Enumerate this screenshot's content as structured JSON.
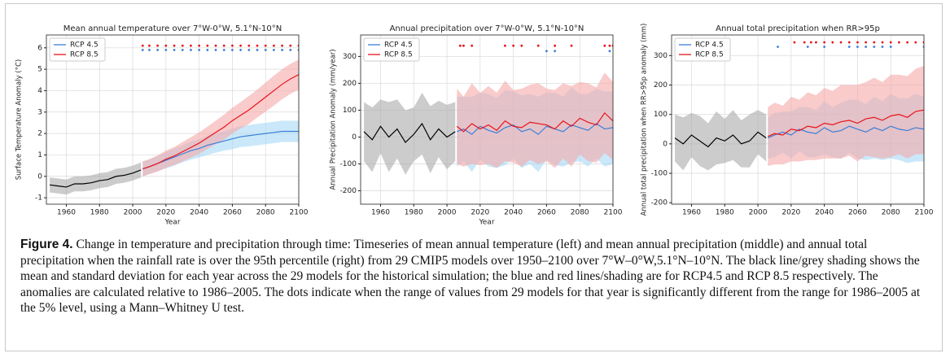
{
  "charts": [
    {
      "chart_data": {
        "type": "line",
        "title": "Mean annual temperature over 7°W-0°W, 5.1°N-10°N",
        "xlabel": "Year",
        "ylabel": "Surface Temperature Anomaly (°C)",
        "xlim": [
          1948,
          2100
        ],
        "xticks": [
          1960,
          1980,
          2000,
          2020,
          2040,
          2060,
          2080,
          2100
        ],
        "ylim": [
          -1.3,
          6.6
        ],
        "yticks": [
          -1,
          0,
          1,
          2,
          3,
          4,
          5,
          6
        ],
        "grid": true,
        "legend": "upper left",
        "historical": {
          "color": "#000000",
          "band_color": "#aaaaaa",
          "x": [
            1950,
            1955,
            1960,
            1965,
            1970,
            1975,
            1980,
            1985,
            1990,
            1995,
            2000,
            2005
          ],
          "values": [
            -0.4,
            -0.45,
            -0.5,
            -0.35,
            -0.35,
            -0.3,
            -0.2,
            -0.15,
            0,
            0.05,
            0.15,
            0.3
          ],
          "std": [
            0.35,
            0.35,
            0.35,
            0.35,
            0.35,
            0.35,
            0.35,
            0.35,
            0.35,
            0.35,
            0.35,
            0.35
          ]
        },
        "series": [
          {
            "name": "RCP 4.5",
            "color": "#3b7fd6",
            "band_color": "#a6d8f5",
            "x": [
              2006,
              2010,
              2015,
              2020,
              2025,
              2030,
              2035,
              2040,
              2045,
              2050,
              2055,
              2060,
              2065,
              2070,
              2075,
              2080,
              2085,
              2090,
              2095,
              2100
            ],
            "values": [
              0.35,
              0.45,
              0.6,
              0.75,
              0.9,
              1.05,
              1.2,
              1.3,
              1.45,
              1.55,
              1.65,
              1.75,
              1.85,
              1.9,
              1.95,
              2.0,
              2.05,
              2.1,
              2.1,
              2.1
            ],
            "std": [
              0.35,
              0.35,
              0.35,
              0.38,
              0.4,
              0.4,
              0.42,
              0.42,
              0.45,
              0.45,
              0.45,
              0.48,
              0.48,
              0.5,
              0.5,
              0.5,
              0.5,
              0.5,
              0.5,
              0.5
            ],
            "marker_x": [
              2006,
              2010,
              2015,
              2020,
              2025,
              2030,
              2035,
              2040,
              2045,
              2050,
              2055,
              2060,
              2065,
              2070,
              2075,
              2080,
              2085,
              2090,
              2095,
              2100
            ],
            "marker_y": 5.9
          },
          {
            "name": "RCP 8.5",
            "color": "#e8141b",
            "band_color": "#f5a9a9",
            "x": [
              2006,
              2010,
              2015,
              2020,
              2025,
              2030,
              2035,
              2040,
              2045,
              2050,
              2055,
              2060,
              2065,
              2070,
              2075,
              2080,
              2085,
              2090,
              2095,
              2100
            ],
            "values": [
              0.35,
              0.45,
              0.6,
              0.8,
              0.95,
              1.15,
              1.35,
              1.55,
              1.8,
              2.05,
              2.3,
              2.6,
              2.85,
              3.1,
              3.4,
              3.7,
              4.0,
              4.3,
              4.55,
              4.75
            ],
            "std": [
              0.35,
              0.35,
              0.38,
              0.4,
              0.42,
              0.45,
              0.48,
              0.5,
              0.52,
              0.55,
              0.58,
              0.6,
              0.62,
              0.65,
              0.65,
              0.68,
              0.7,
              0.7,
              0.7,
              0.7
            ],
            "marker_x": [
              2006,
              2010,
              2015,
              2020,
              2025,
              2030,
              2035,
              2040,
              2045,
              2050,
              2055,
              2060,
              2065,
              2070,
              2075,
              2080,
              2085,
              2090,
              2095,
              2100
            ],
            "marker_y": 6.1
          }
        ]
      }
    },
    {
      "chart_data": {
        "type": "line",
        "title": "Annual precipitation over 7°W-0°W, 5.1°N-10°N",
        "xlabel": "Year",
        "ylabel": "Annual Precipitation Anomaly (mm/year)",
        "xlim": [
          1948,
          2100
        ],
        "xticks": [
          1960,
          1980,
          2000,
          2020,
          2040,
          2060,
          2080,
          2100
        ],
        "ylim": [
          -250,
          380
        ],
        "yticks": [
          -200,
          -100,
          0,
          100,
          200,
          300
        ],
        "grid": true,
        "legend": "upper left",
        "historical": {
          "color": "#000000",
          "band_color": "#aaaaaa",
          "x": [
            1950,
            1955,
            1960,
            1965,
            1970,
            1975,
            1980,
            1985,
            1990,
            1995,
            2000,
            2005
          ],
          "values": [
            20,
            -10,
            40,
            0,
            30,
            -20,
            10,
            50,
            -10,
            30,
            0,
            20
          ],
          "std": [
            110,
            120,
            100,
            130,
            110,
            120,
            100,
            115,
            125,
            105,
            120,
            110
          ]
        },
        "series": [
          {
            "name": "RCP 4.5",
            "color": "#3b7fd6",
            "band_color": "#a6d8f5",
            "x": [
              2006,
              2010,
              2015,
              2020,
              2025,
              2030,
              2035,
              2040,
              2045,
              2050,
              2055,
              2060,
              2065,
              2070,
              2075,
              2080,
              2085,
              2090,
              2095,
              2100
            ],
            "values": [
              20,
              30,
              10,
              40,
              25,
              15,
              35,
              45,
              20,
              30,
              10,
              40,
              30,
              20,
              45,
              35,
              25,
              50,
              30,
              35
            ],
            "std": [
              130,
              120,
              140,
              125,
              135,
              130,
              140,
              125,
              135,
              130,
              140,
              125,
              135,
              130,
              140,
              125,
              135,
              130,
              140,
              135
            ],
            "marker_x": [
              2060,
              2065,
              2098
            ],
            "marker_y": 320
          },
          {
            "name": "RCP 8.5",
            "color": "#e8141b",
            "band_color": "#f5a9a9",
            "x": [
              2006,
              2010,
              2015,
              2020,
              2025,
              2030,
              2035,
              2040,
              2045,
              2050,
              2055,
              2060,
              2065,
              2070,
              2075,
              2080,
              2085,
              2090,
              2095,
              2100
            ],
            "values": [
              40,
              20,
              50,
              30,
              45,
              25,
              60,
              40,
              35,
              55,
              50,
              45,
              30,
              60,
              40,
              70,
              55,
              45,
              90,
              60
            ],
            "std": [
              140,
              130,
              150,
              135,
              145,
              140,
              150,
              135,
              145,
              140,
              150,
              135,
              145,
              140,
              150,
              135,
              145,
              140,
              150,
              145
            ],
            "marker_x": [
              2008,
              2010,
              2015,
              2035,
              2040,
              2045,
              2055,
              2065,
              2075,
              2095,
              2098,
              2100
            ],
            "marker_y": 340
          }
        ]
      }
    },
    {
      "chart_data": {
        "type": "line",
        "title": "Annual total precipitation when RR>95p",
        "ylabel": "Annual total precipitation when RR>95p anomaly (mm)",
        "xlim": [
          1948,
          2100
        ],
        "xticks": [
          1960,
          1980,
          2000,
          2020,
          2040,
          2060,
          2080,
          2100
        ],
        "ylim": [
          -205,
          370
        ],
        "yticks": [
          -200,
          -100,
          0,
          100,
          200,
          300
        ],
        "grid": true,
        "legend": "upper left",
        "historical": {
          "color": "#000000",
          "band_color": "#aaaaaa",
          "x": [
            1950,
            1955,
            1960,
            1965,
            1970,
            1975,
            1980,
            1985,
            1990,
            1995,
            2000,
            2005
          ],
          "values": [
            20,
            0,
            30,
            10,
            -10,
            20,
            10,
            30,
            0,
            10,
            40,
            20
          ],
          "std": [
            80,
            90,
            75,
            85,
            80,
            90,
            75,
            85,
            80,
            90,
            75,
            80
          ]
        },
        "series": [
          {
            "name": "RCP 4.5",
            "color": "#3b7fd6",
            "band_color": "#a6d8f5",
            "x": [
              2006,
              2010,
              2015,
              2020,
              2025,
              2030,
              2035,
              2040,
              2045,
              2050,
              2055,
              2060,
              2065,
              2070,
              2075,
              2080,
              2085,
              2090,
              2095,
              2100
            ],
            "values": [
              20,
              30,
              40,
              30,
              50,
              40,
              35,
              55,
              40,
              45,
              60,
              50,
              40,
              55,
              45,
              60,
              50,
              45,
              55,
              50
            ],
            "std": [
              70,
              75,
              70,
              80,
              75,
              85,
              80,
              90,
              85,
              95,
              90,
              100,
              95,
              105,
              100,
              110,
              105,
              110,
              115,
              110
            ],
            "marker_x": [
              2012,
              2030,
              2040,
              2055,
              2060,
              2065,
              2070,
              2075,
              2080,
              2100
            ],
            "marker_y": 330
          },
          {
            "name": "RCP 8.5",
            "color": "#e8141b",
            "band_color": "#f5a9a9",
            "x": [
              2006,
              2010,
              2015,
              2020,
              2025,
              2030,
              2035,
              2040,
              2045,
              2050,
              2055,
              2060,
              2065,
              2070,
              2075,
              2080,
              2085,
              2090,
              2095,
              2100
            ],
            "values": [
              25,
              35,
              30,
              50,
              45,
              60,
              55,
              70,
              65,
              75,
              80,
              70,
              85,
              90,
              80,
              95,
              100,
              90,
              110,
              115
            ],
            "std": [
              100,
              105,
              100,
              110,
              105,
              115,
              110,
              120,
              115,
              125,
              120,
              130,
              125,
              135,
              130,
              140,
              135,
              140,
              145,
              150
            ],
            "marker_x": [
              2022,
              2028,
              2032,
              2035,
              2040,
              2045,
              2050,
              2055,
              2060,
              2065,
              2070,
              2075,
              2080,
              2085,
              2090,
              2095,
              2100
            ],
            "marker_y": 345
          }
        ]
      }
    }
  ],
  "caption": {
    "label": "Figure 4.",
    "text": " Change in temperature and precipitation through time: Timeseries of mean annual temperature (left) and mean annual precipitation (middle) and annual total precipitation when the rainfall rate is over the 95th percentile (right) from 29 CMIP5 models over 1950–2100 over 7°W–0°W,5.1°N–10°N. The black line/grey shading shows the mean and standard deviation for each year across the 29 models for the historical simulation; the blue and red lines/shading are for RCP4.5 and RCP 8.5 respectively. The anomalies are calculated relative to 1986–2005. The dots indicate when the range of values from 29 models for that year is significantly different from the range for 1986–2005 at the 5% level, using a Mann–Whitney U test."
  }
}
